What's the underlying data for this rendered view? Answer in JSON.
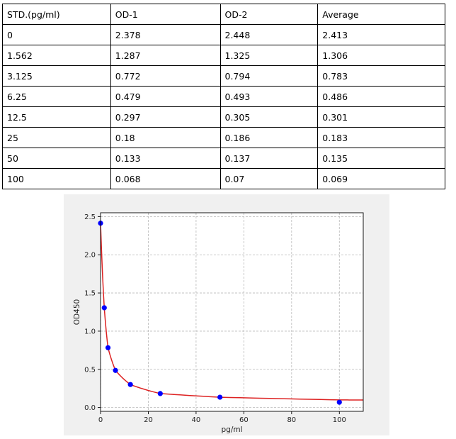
{
  "table": {
    "headers": [
      "STD.(pg/ml)",
      "OD-1",
      "OD-2",
      "Average"
    ],
    "rows": [
      [
        "0",
        "2.378",
        "2.448",
        "2.413"
      ],
      [
        "1.562",
        "1.287",
        "1.325",
        "1.306"
      ],
      [
        "3.125",
        "0.772",
        "0.794",
        "0.783"
      ],
      [
        "6.25",
        "0.479",
        "0.493",
        "0.486"
      ],
      [
        "12.5",
        "0.297",
        "0.305",
        "0.301"
      ],
      [
        "25",
        "0.18",
        "0.186",
        "0.183"
      ],
      [
        "50",
        "0.133",
        "0.137",
        "0.135"
      ],
      [
        "100",
        "0.068",
        "0.07",
        "0.069"
      ]
    ]
  },
  "chart_data": {
    "type": "scatter",
    "title": "",
    "xlabel": "pg/ml",
    "ylabel": "OD450",
    "xlim": [
      0,
      110
    ],
    "ylim": [
      -0.05,
      2.55
    ],
    "xticks": [
      "0",
      "20",
      "40",
      "60",
      "80",
      "100"
    ],
    "yticks": [
      "0.0",
      "0.5",
      "1.0",
      "1.5",
      "2.0",
      "2.5"
    ],
    "grid": true,
    "points": {
      "x": [
        0,
        1.562,
        3.125,
        6.25,
        12.5,
        25,
        50,
        100
      ],
      "y": [
        2.413,
        1.306,
        0.783,
        0.486,
        0.301,
        0.183,
        0.135,
        0.069
      ],
      "color": "#0000ff"
    },
    "fit_curve": {
      "color": "#dd2222",
      "y_at_x": {
        "0": 2.42,
        "1.562": 1.306,
        "3.125": 0.783,
        "6.25": 0.486,
        "12.5": 0.301,
        "25": 0.183,
        "50": 0.135,
        "100": 0.1,
        "110": 0.098
      }
    }
  }
}
